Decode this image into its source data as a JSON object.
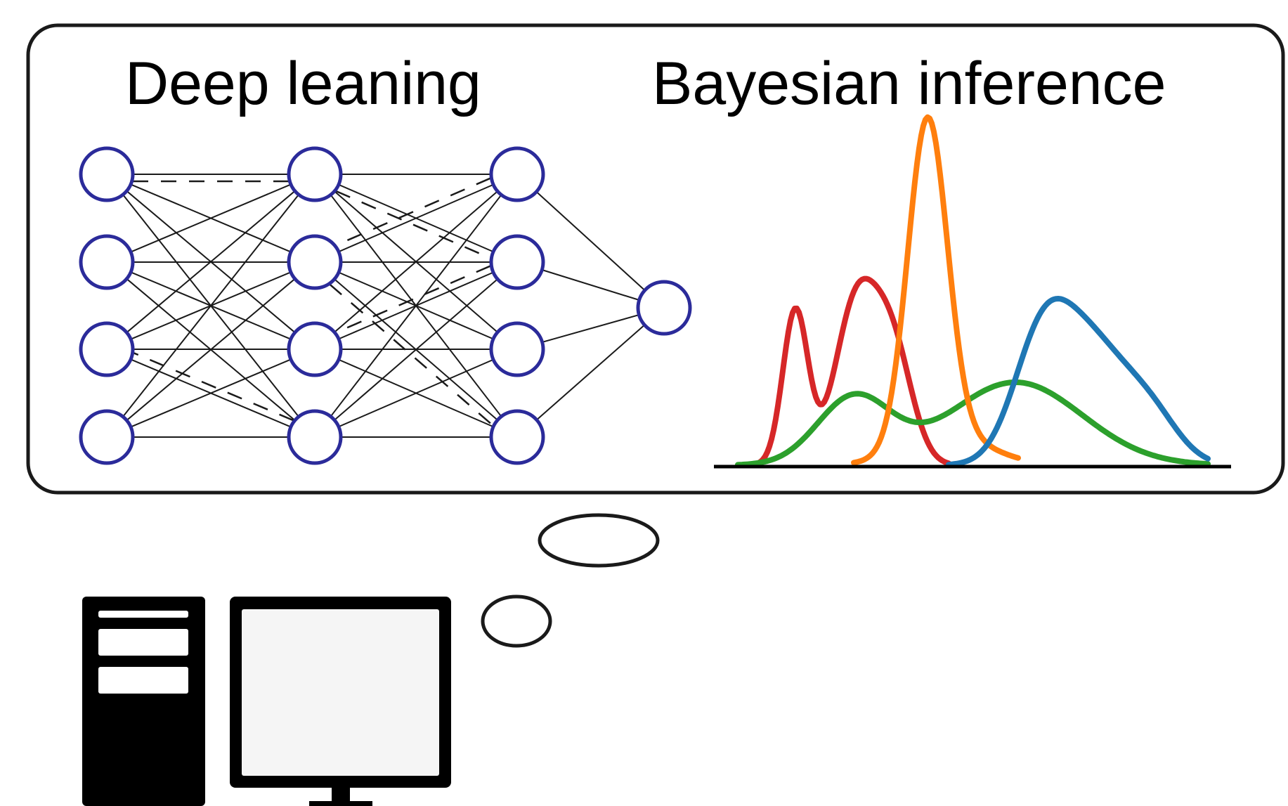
{
  "thought_bubble": {
    "left_title": "Deep leaning",
    "right_title": "Bayesian inference"
  },
  "neural_network": {
    "layer_node_counts": [
      4,
      4,
      4,
      1
    ],
    "node_color": "#2b2b9a",
    "edge_color": "#1a1a1a",
    "dashed_connection_color": "#1a1a1a"
  },
  "distributions": {
    "curves": [
      {
        "color": "#d62728",
        "shape": "bimodal-left"
      },
      {
        "color": "#2ca02c",
        "shape": "bimodal-wide"
      },
      {
        "color": "#ff7f0e",
        "shape": "narrow-peak"
      },
      {
        "color": "#1f77b4",
        "shape": "broad-right"
      }
    ],
    "baseline_color": "#000000"
  },
  "computer": {
    "icon": "desktop-computer-icon",
    "color": "#000000"
  }
}
